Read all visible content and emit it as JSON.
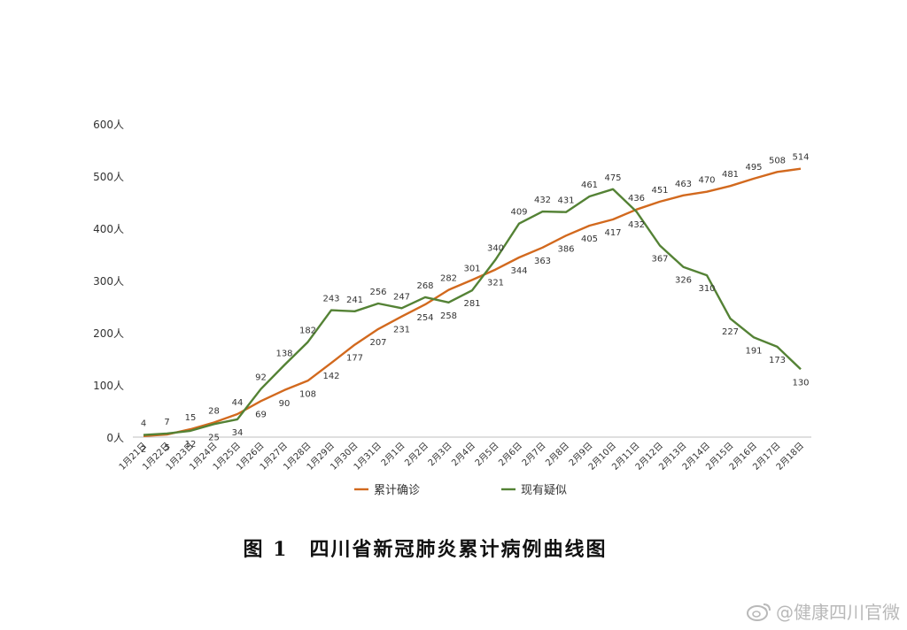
{
  "chart_data": {
    "type": "line",
    "categories": [
      "1月21日",
      "1月22日",
      "1月23日",
      "1月24日",
      "1月25日",
      "1月26日",
      "1月27日",
      "1月28日",
      "1月29日",
      "1月30日",
      "1月31日",
      "2月1日",
      "2月2日",
      "2月3日",
      "2月4日",
      "2月5日",
      "2月6日",
      "2月7日",
      "2月8日",
      "2月9日",
      "2月10日",
      "2月11日",
      "2月12日",
      "2月13日",
      "2月14日",
      "2月15日",
      "2月16日",
      "2月17日",
      "2月18日"
    ],
    "series": [
      {
        "name": "累计确诊",
        "color": "#d2691e",
        "values": [
          2,
          5,
          15,
          28,
          44,
          69,
          90,
          108,
          142,
          177,
          207,
          231,
          254,
          282,
          301,
          321,
          344,
          363,
          386,
          405,
          417,
          436,
          451,
          463,
          470,
          481,
          495,
          508,
          514
        ]
      },
      {
        "name": "现有疑似",
        "color": "#548235",
        "values": [
          4,
          7,
          12,
          25,
          34,
          92,
          138,
          182,
          243,
          241,
          256,
          247,
          268,
          258,
          281,
          340,
          409,
          432,
          431,
          461,
          475,
          432,
          367,
          326,
          310,
          227,
          191,
          173,
          130
        ]
      }
    ],
    "yticks": [
      "0人",
      "100人",
      "200人",
      "300人",
      "400人",
      "500人",
      "600人"
    ],
    "ylim": [
      0,
      600
    ],
    "legend": "bottom",
    "grid": false
  },
  "caption": "图 1　四川省新冠肺炎累计病例曲线图",
  "watermark": "@健康四川官微"
}
